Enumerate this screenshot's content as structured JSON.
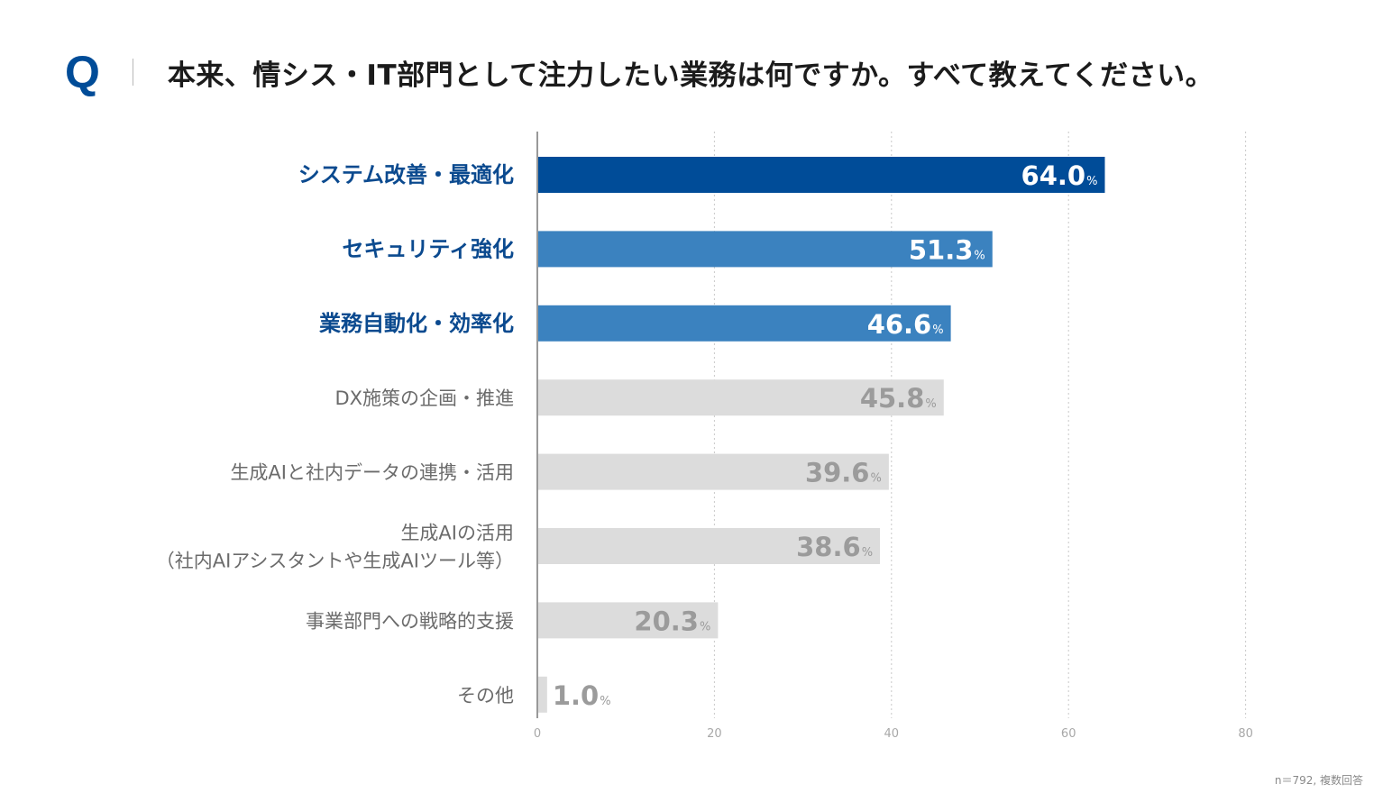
{
  "question": {
    "mark": "Q",
    "text": "本来、情シス・IT部門として注力したい業務は何ですか。すべて教えてください。"
  },
  "colors": {
    "accent_dark": "#004c98",
    "accent_mid": "#3b82bf",
    "neutral_bar": "#dcdcdc",
    "neutral_value": "#9b9b9b",
    "label_highlight": "#0b4a8f",
    "label_normal": "#6b6b6b",
    "axis_tick": "#a8a8a8"
  },
  "chart_data": {
    "type": "bar",
    "orientation": "horizontal",
    "title": "本来、情シス・IT部門として注力したい業務は何ですか。すべて教えてください。",
    "categories": [
      "システム改善・最適化",
      "セキュリティ強化",
      "業務自動化・効率化",
      "DX施策の企画・推進",
      "生成AIと社内データの連携・活用",
      "生成AIの活用\n（社内AIアシスタントや生成AIツール等）",
      "事業部門への戦略的支援",
      "その他"
    ],
    "values": [
      64.0,
      51.3,
      46.6,
      45.8,
      39.6,
      38.6,
      20.3,
      1.0
    ],
    "value_labels": [
      "64.0",
      "51.3",
      "46.6",
      "45.8",
      "39.6",
      "38.6",
      "20.3",
      "1.0"
    ],
    "value_unit": "%",
    "highlight": [
      true,
      true,
      true,
      false,
      false,
      false,
      false,
      false
    ],
    "highlight_level": [
      "dark",
      "mid",
      "mid",
      "none",
      "none",
      "none",
      "none",
      "none"
    ],
    "xlim": [
      0,
      80
    ],
    "xticks": [
      0,
      20,
      40,
      60,
      80
    ],
    "grid": true,
    "xlabel": "",
    "ylabel": ""
  },
  "footnote": "n＝792, 複数回答"
}
